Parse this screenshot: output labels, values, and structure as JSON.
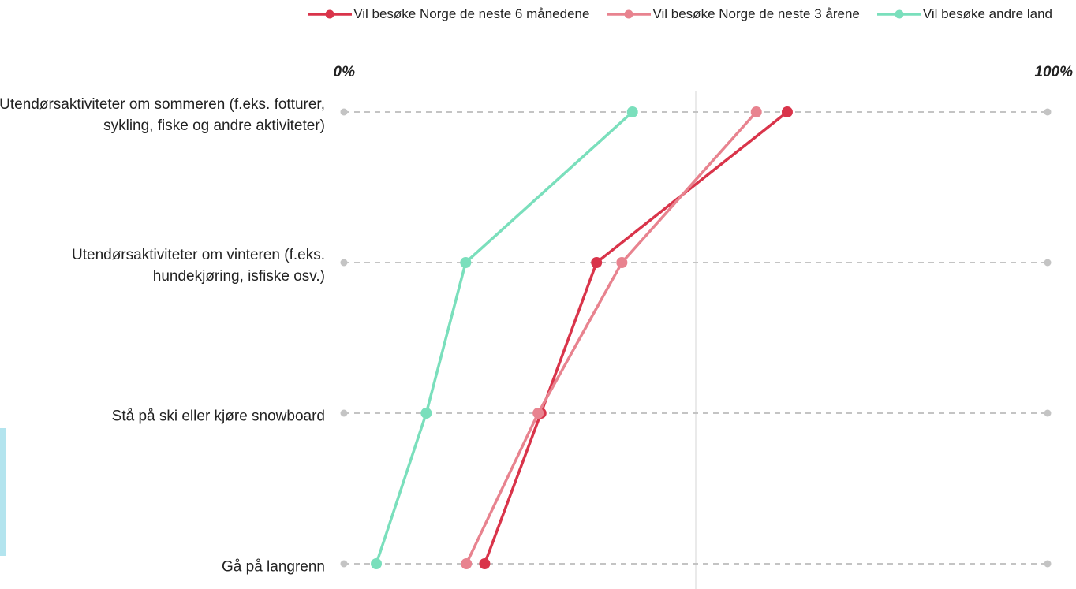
{
  "chart_data": {
    "type": "line",
    "categories": [
      "Utendørsaktiviteter om sommeren (f.eks. fotturer, sykling, fiske og andre aktiviteter)",
      "Utendørsaktiviteter om vinteren (f.eks. hundekjøring, isfiske osv.)",
      "Stå på ski eller kjøre snowboard",
      "Gå på langrenn"
    ],
    "series": [
      {
        "name": "Vil besøke Norge de neste 6 månedene",
        "color": "#d9344a",
        "values": [
          63.0,
          35.9,
          28.0,
          20.0
        ]
      },
      {
        "name": "Vil besøke Norge de neste 3 årene",
        "color": "#e8838f",
        "values": [
          58.6,
          39.5,
          27.6,
          17.4
        ]
      },
      {
        "name": "Vil besøke andre land",
        "color": "#7adfbc",
        "values": [
          41.0,
          17.3,
          11.7,
          4.6
        ]
      }
    ],
    "xlim": [
      0,
      100
    ],
    "xticks": [
      {
        "value": 0,
        "label": "0%"
      },
      {
        "value": 100,
        "label": "100%"
      }
    ],
    "legend": "top-right"
  }
}
